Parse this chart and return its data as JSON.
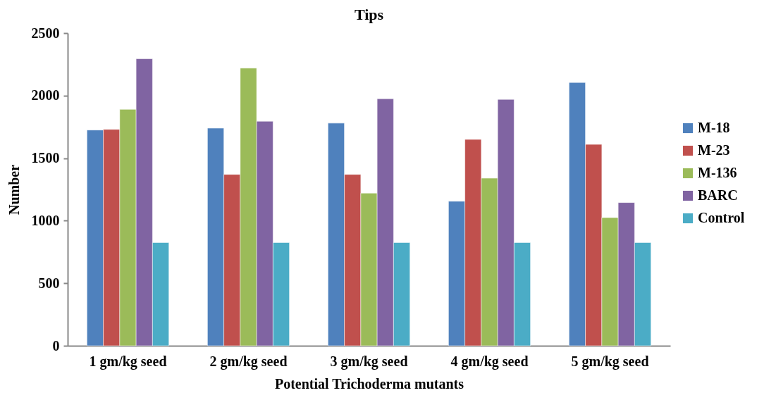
{
  "chart_data": {
    "type": "bar",
    "title": "Tips",
    "xlabel": "Potential Trichoderma mutants",
    "ylabel": "Number",
    "categories": [
      "1 gm/kg seed",
      "2 gm/kg seed",
      "3 gm/kg seed",
      "4 gm/kg seed",
      "5 gm/kg seed"
    ],
    "series": [
      {
        "name": "M-18",
        "color": "#4f81bd",
        "values": [
          1725,
          1740,
          1780,
          1155,
          2105
        ]
      },
      {
        "name": "M-23",
        "color": "#c0504d",
        "values": [
          1730,
          1370,
          1370,
          1650,
          1610
        ]
      },
      {
        "name": "M-136",
        "color": "#9bbb59",
        "values": [
          1890,
          2220,
          1220,
          1340,
          1025
        ]
      },
      {
        "name": "BARC",
        "color": "#8064a2",
        "values": [
          2295,
          1795,
          1975,
          1970,
          1145
        ]
      },
      {
        "name": "Control",
        "color": "#4bacc6",
        "values": [
          825,
          825,
          825,
          825,
          825
        ]
      }
    ],
    "ylim": [
      0,
      2500
    ],
    "yticks": [
      0,
      500,
      1000,
      1500,
      2000,
      2500
    ],
    "grid": false,
    "legend": "right"
  }
}
